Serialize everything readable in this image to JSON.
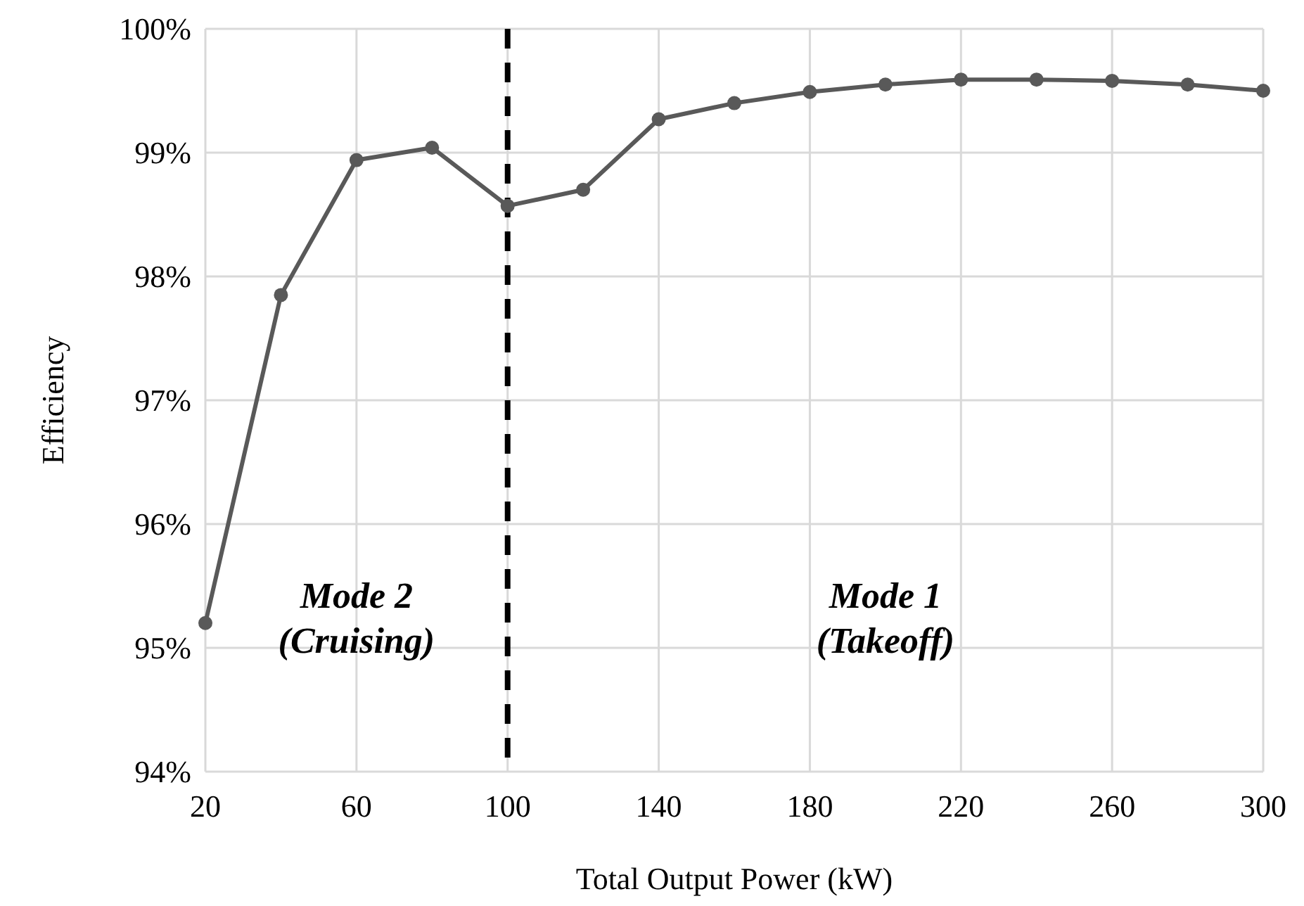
{
  "chart_data": {
    "type": "line",
    "xlabel": "Total Output Power (kW)",
    "ylabel": "Efficiency",
    "x": [
      20,
      40,
      60,
      80,
      100,
      120,
      140,
      160,
      180,
      200,
      220,
      240,
      260,
      280,
      300
    ],
    "series": [
      {
        "color": "#595959",
        "values": [
          95.2,
          97.85,
          98.94,
          99.04,
          98.57,
          98.7,
          99.27,
          99.4,
          99.49,
          99.55,
          99.59,
          99.59,
          99.58,
          99.55,
          99.5
        ]
      }
    ],
    "xlim": [
      20,
      300
    ],
    "xticks": [
      20,
      60,
      100,
      140,
      180,
      220,
      260,
      300
    ],
    "ylim": [
      94,
      100
    ],
    "yticks": [
      {
        "value": 94,
        "label": "94%"
      },
      {
        "value": 95,
        "label": "95%"
      },
      {
        "value": 96,
        "label": "96%"
      },
      {
        "value": 97,
        "label": "97%"
      },
      {
        "value": 98,
        "label": "98%"
      },
      {
        "value": 99,
        "label": "99%"
      },
      {
        "value": 100,
        "label": "100%"
      }
    ],
    "grid": true,
    "marker": "circle",
    "line_style": "solid",
    "ref_lines": [
      {
        "axis": "x",
        "value": 100,
        "color": "#000000",
        "line_style": "dashed"
      }
    ],
    "annotations": [
      "Mode 2\n(Cruising)",
      "Mode 1\n(Takeoff)"
    ]
  }
}
